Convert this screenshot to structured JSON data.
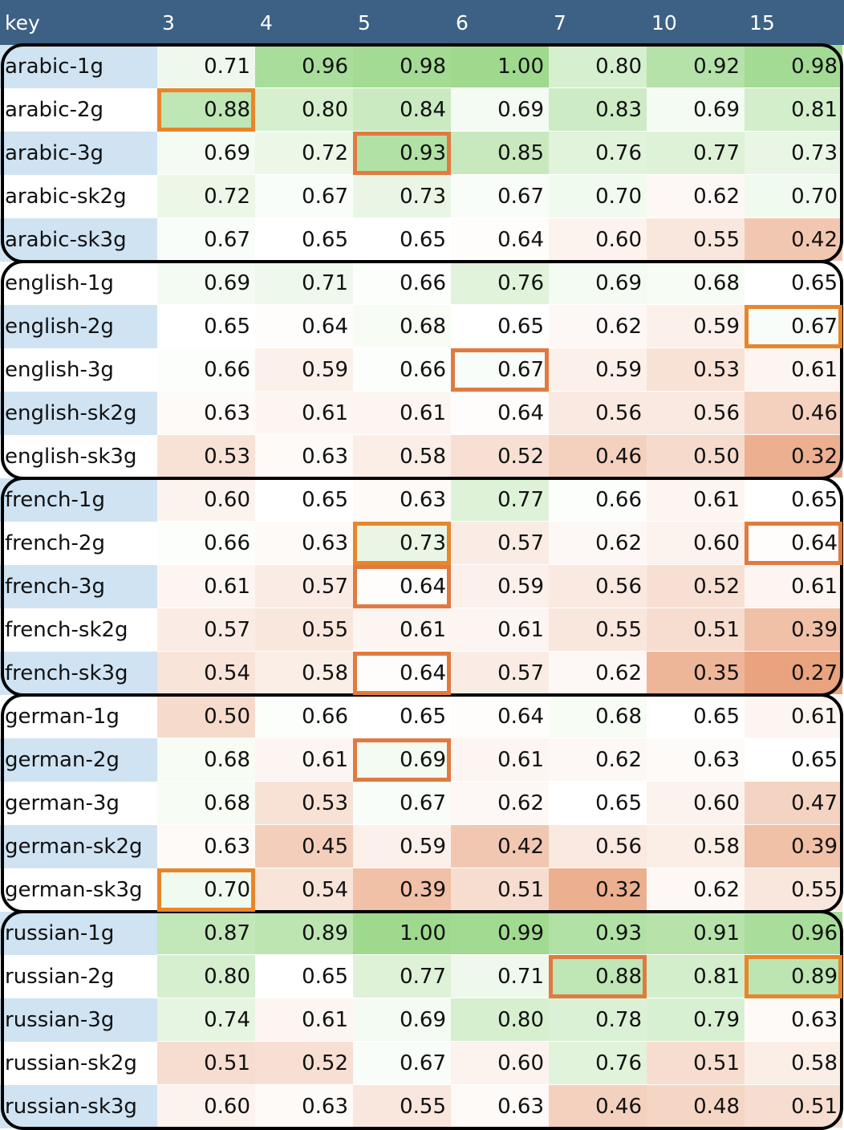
{
  "chart_data": {
    "type": "heatmap",
    "corner_label": "key",
    "columns": [
      "3",
      "4",
      "5",
      "6",
      "7",
      "10",
      "15"
    ],
    "rows": [
      {
        "key": "arabic-1g",
        "values": [
          "0.71",
          "0.96",
          "0.98",
          "1.00",
          "0.80",
          "0.92",
          "0.98"
        ]
      },
      {
        "key": "arabic-2g",
        "values": [
          "0.88",
          "0.80",
          "0.84",
          "0.69",
          "0.83",
          "0.69",
          "0.81"
        ]
      },
      {
        "key": "arabic-3g",
        "values": [
          "0.69",
          "0.72",
          "0.93",
          "0.85",
          "0.76",
          "0.77",
          "0.73"
        ]
      },
      {
        "key": "arabic-sk2g",
        "values": [
          "0.72",
          "0.67",
          "0.73",
          "0.67",
          "0.70",
          "0.62",
          "0.70"
        ]
      },
      {
        "key": "arabic-sk3g",
        "values": [
          "0.67",
          "0.65",
          "0.65",
          "0.64",
          "0.60",
          "0.55",
          "0.42"
        ]
      },
      {
        "key": "english-1g",
        "values": [
          "0.69",
          "0.71",
          "0.66",
          "0.76",
          "0.69",
          "0.68",
          "0.65"
        ]
      },
      {
        "key": "english-2g",
        "values": [
          "0.65",
          "0.64",
          "0.68",
          "0.65",
          "0.62",
          "0.59",
          "0.67"
        ]
      },
      {
        "key": "english-3g",
        "values": [
          "0.66",
          "0.59",
          "0.66",
          "0.67",
          "0.59",
          "0.53",
          "0.61"
        ]
      },
      {
        "key": "english-sk2g",
        "values": [
          "0.63",
          "0.61",
          "0.61",
          "0.64",
          "0.56",
          "0.56",
          "0.46"
        ]
      },
      {
        "key": "english-sk3g",
        "values": [
          "0.53",
          "0.63",
          "0.58",
          "0.52",
          "0.46",
          "0.50",
          "0.32"
        ]
      },
      {
        "key": "french-1g",
        "values": [
          "0.60",
          "0.65",
          "0.63",
          "0.77",
          "0.66",
          "0.61",
          "0.65"
        ]
      },
      {
        "key": "french-2g",
        "values": [
          "0.66",
          "0.63",
          "0.73",
          "0.57",
          "0.62",
          "0.60",
          "0.64"
        ]
      },
      {
        "key": "french-3g",
        "values": [
          "0.61",
          "0.57",
          "0.64",
          "0.59",
          "0.56",
          "0.52",
          "0.61"
        ]
      },
      {
        "key": "french-sk2g",
        "values": [
          "0.57",
          "0.55",
          "0.61",
          "0.61",
          "0.55",
          "0.51",
          "0.39"
        ]
      },
      {
        "key": "french-sk3g",
        "values": [
          "0.54",
          "0.58",
          "0.64",
          "0.57",
          "0.62",
          "0.35",
          "0.27"
        ]
      },
      {
        "key": "german-1g",
        "values": [
          "0.50",
          "0.66",
          "0.65",
          "0.64",
          "0.68",
          "0.65",
          "0.61"
        ]
      },
      {
        "key": "german-2g",
        "values": [
          "0.68",
          "0.61",
          "0.69",
          "0.61",
          "0.62",
          "0.63",
          "0.65"
        ]
      },
      {
        "key": "german-3g",
        "values": [
          "0.68",
          "0.53",
          "0.67",
          "0.62",
          "0.65",
          "0.60",
          "0.47"
        ]
      },
      {
        "key": "german-sk2g",
        "values": [
          "0.63",
          "0.45",
          "0.59",
          "0.42",
          "0.56",
          "0.58",
          "0.39"
        ]
      },
      {
        "key": "german-sk3g",
        "values": [
          "0.70",
          "0.54",
          "0.39",
          "0.51",
          "0.32",
          "0.62",
          "0.55"
        ]
      },
      {
        "key": "russian-1g",
        "values": [
          "0.87",
          "0.89",
          "1.00",
          "0.99",
          "0.93",
          "0.91",
          "0.96"
        ]
      },
      {
        "key": "russian-2g",
        "values": [
          "0.80",
          "0.65",
          "0.77",
          "0.71",
          "0.88",
          "0.81",
          "0.89"
        ]
      },
      {
        "key": "russian-3g",
        "values": [
          "0.74",
          "0.61",
          "0.69",
          "0.80",
          "0.78",
          "0.79",
          "0.63"
        ]
      },
      {
        "key": "russian-sk2g",
        "values": [
          "0.51",
          "0.52",
          "0.67",
          "0.60",
          "0.76",
          "0.51",
          "0.58"
        ]
      },
      {
        "key": "russian-sk3g",
        "values": [
          "0.60",
          "0.63",
          "0.55",
          "0.63",
          "0.46",
          "0.48",
          "0.51"
        ]
      }
    ],
    "highlights": [
      {
        "row": 1,
        "col": 0,
        "style": "orange"
      },
      {
        "row": 2,
        "col": 2,
        "style": "alt"
      },
      {
        "row": 6,
        "col": 6,
        "style": "orange"
      },
      {
        "row": 7,
        "col": 3,
        "style": "alt"
      },
      {
        "row": 11,
        "col": 2,
        "style": "orange"
      },
      {
        "row": 11,
        "col": 6,
        "style": "alt"
      },
      {
        "row": 12,
        "col": 2,
        "style": "alt"
      },
      {
        "row": 14,
        "col": 2,
        "style": "alt"
      },
      {
        "row": 16,
        "col": 2,
        "style": "alt"
      },
      {
        "row": 19,
        "col": 0,
        "style": "orange"
      },
      {
        "row": 21,
        "col": 4,
        "style": "alt"
      },
      {
        "row": 21,
        "col": 6,
        "style": "orange"
      }
    ],
    "groups": [
      "arabic",
      "english",
      "french",
      "german",
      "russian"
    ],
    "color_scale": {
      "low": "#e9a37e",
      "mid": "#ffffff",
      "high": "#9ed98e",
      "midpoint": 0.65
    },
    "label_colors": {
      "stripe": "#cfe3f3",
      "plain": "#ffffff"
    },
    "header_color": "#3c6184"
  }
}
